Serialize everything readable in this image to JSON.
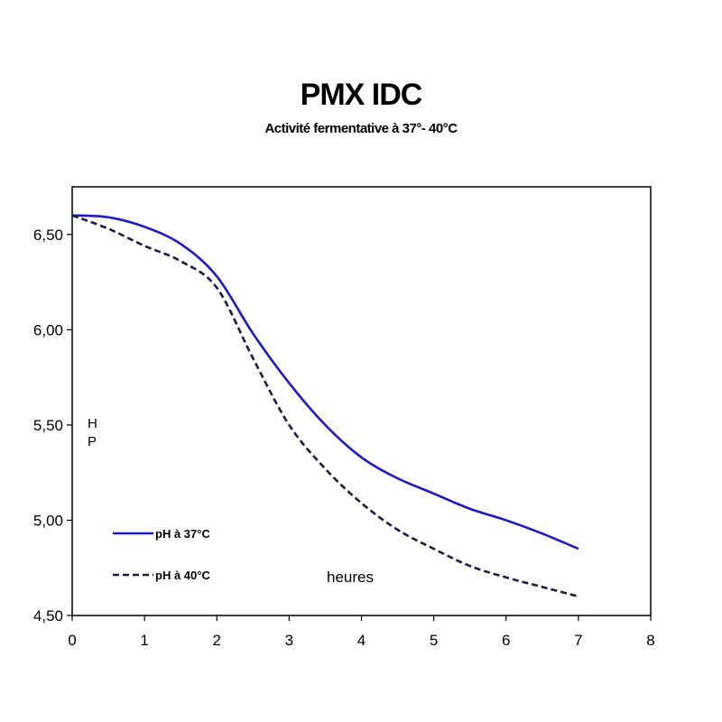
{
  "title": "PMX IDC",
  "subtitle": "Activité fermentative à 37°- 40°C",
  "chart_data": {
    "type": "line",
    "title": "PMX IDC",
    "subtitle": "Activité fermentative à 37°- 40°C",
    "ylabel": "H\nP",
    "ylabel_lines": [
      "H",
      "P"
    ],
    "annotation": "heures",
    "xlim": [
      0,
      8
    ],
    "ylim": [
      4.5,
      6.75
    ],
    "x_ticks": [
      0,
      1,
      2,
      3,
      4,
      5,
      6,
      7,
      8
    ],
    "x_tick_labels": [
      "0",
      "1",
      "2",
      "3",
      "4",
      "5",
      "6",
      "7",
      "8"
    ],
    "y_ticks": [
      4.5,
      5.0,
      5.5,
      6.0,
      6.5
    ],
    "y_tick_labels": [
      "4,50",
      "5,00",
      "5,50",
      "6,00",
      "6,50"
    ],
    "grid": false,
    "legend_position": "bottom-left",
    "series": [
      {
        "name": "pH à 37°C",
        "style": "solid",
        "color": "#1a1acc",
        "x": [
          0,
          0.5,
          1,
          1.5,
          2,
          2.5,
          3,
          3.5,
          4,
          4.5,
          5,
          5.5,
          6,
          6.5,
          7
        ],
        "y": [
          6.6,
          6.59,
          6.54,
          6.45,
          6.28,
          5.98,
          5.72,
          5.5,
          5.33,
          5.22,
          5.14,
          5.06,
          5.0,
          4.93,
          4.85
        ]
      },
      {
        "name": "pH à 40°C",
        "style": "dashed",
        "color": "#1a1a4d",
        "x": [
          0,
          0.5,
          1,
          1.5,
          2,
          2.5,
          3,
          3.5,
          4,
          4.5,
          5,
          5.5,
          6,
          6.5,
          7
        ],
        "y": [
          6.6,
          6.53,
          6.44,
          6.36,
          6.22,
          5.85,
          5.5,
          5.27,
          5.09,
          4.95,
          4.85,
          4.76,
          4.7,
          4.65,
          4.6
        ]
      }
    ]
  }
}
